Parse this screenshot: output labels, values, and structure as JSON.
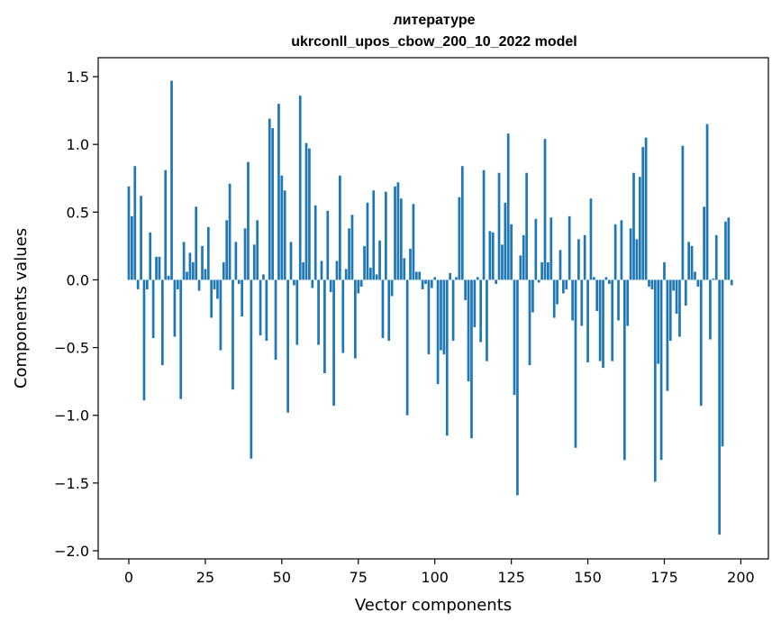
{
  "chart_data": {
    "type": "bar",
    "title_line1": "литературе",
    "title_line2": "ukrconll_upos_cbow_200_10_2022 model",
    "xlabel": "Vector components",
    "ylabel": "Components values",
    "xlim": [
      -10,
      209
    ],
    "ylim": [
      -2.06,
      1.64
    ],
    "xticks": [
      0,
      25,
      50,
      75,
      100,
      125,
      150,
      175,
      200
    ],
    "xtick_labels": [
      "0",
      "25",
      "50",
      "75",
      "100",
      "125",
      "150",
      "175",
      "200"
    ],
    "yticks": [
      1.5,
      1.0,
      0.5,
      0.0,
      -0.5,
      -1.0,
      -1.5,
      -2.0
    ],
    "ytick_labels": [
      "1.5",
      "1.0",
      "0.5",
      "0.0",
      "−0.5",
      "−1.0",
      "−1.5",
      "−2.0"
    ],
    "bar_color": "#1f77b4",
    "grid": false,
    "values": [
      0.69,
      0.47,
      0.84,
      -0.07,
      0.62,
      -0.89,
      -0.07,
      0.35,
      -0.43,
      0.17,
      0.17,
      -0.63,
      0.81,
      0.03,
      1.47,
      -0.42,
      -0.07,
      -0.88,
      0.28,
      0.06,
      0.2,
      0.13,
      0.54,
      -0.08,
      0.25,
      0.08,
      0.39,
      -0.28,
      -0.07,
      -0.14,
      -0.52,
      0.13,
      0.44,
      0.71,
      -0.81,
      0.28,
      -0.03,
      -0.27,
      0.38,
      0.87,
      -1.32,
      0.26,
      0.44,
      -0.41,
      0.04,
      -0.45,
      1.19,
      1.12,
      -0.59,
      1.3,
      0.77,
      0.66,
      -0.98,
      0.28,
      -0.04,
      -0.48,
      1.36,
      0.13,
      1.01,
      0.97,
      -0.06,
      0.55,
      -0.48,
      0.14,
      -0.69,
      0.51,
      -0.09,
      -0.93,
      0.14,
      0.77,
      -0.54,
      0.08,
      0.38,
      0.48,
      -0.58,
      -0.1,
      -0.05,
      0.25,
      0.57,
      0.09,
      0.66,
      0.04,
      0.29,
      -0.43,
      0.65,
      -0.45,
      -0.12,
      0.69,
      0.72,
      0.6,
      0.16,
      -1.0,
      0.23,
      0.56,
      0.06,
      0.06,
      -0.07,
      -0.03,
      -0.55,
      -0.06,
      0.02,
      -0.77,
      -0.52,
      -0.55,
      -1.15,
      0.05,
      -0.45,
      0.02,
      0.61,
      0.84,
      -0.15,
      -0.75,
      -1.17,
      -0.35,
      0.02,
      -0.46,
      0.81,
      -0.6,
      0.36,
      0.35,
      -0.03,
      0.79,
      0.26,
      0.57,
      1.08,
      0.41,
      -0.85,
      -1.59,
      0.18,
      0.33,
      0.79,
      -0.63,
      -0.24,
      0.45,
      -0.02,
      0.13,
      1.04,
      0.13,
      0.46,
      -0.28,
      -0.18,
      0.22,
      -0.1,
      -0.07,
      0.47,
      -0.3,
      -1.24,
      0.3,
      -0.34,
      0.33,
      -0.61,
      0.6,
      0.02,
      -0.23,
      -0.6,
      -0.65,
      0.02,
      -0.03,
      -0.6,
      0.41,
      -0.3,
      0.44,
      -1.33,
      -0.34,
      0.38,
      0.79,
      0.3,
      0.76,
      0.98,
      1.05,
      -0.05,
      -0.07,
      -1.49,
      -0.62,
      -1.33,
      0.13,
      -0.82,
      -0.45,
      -0.08,
      -0.25,
      -0.42,
      0.99,
      -0.19,
      0.28,
      0.25,
      0.06,
      -0.05,
      -0.93,
      0.54,
      1.15,
      -0.44,
      0.01,
      0.33,
      -1.88,
      -1.23,
      0.43,
      0.46,
      -0.04
    ]
  }
}
